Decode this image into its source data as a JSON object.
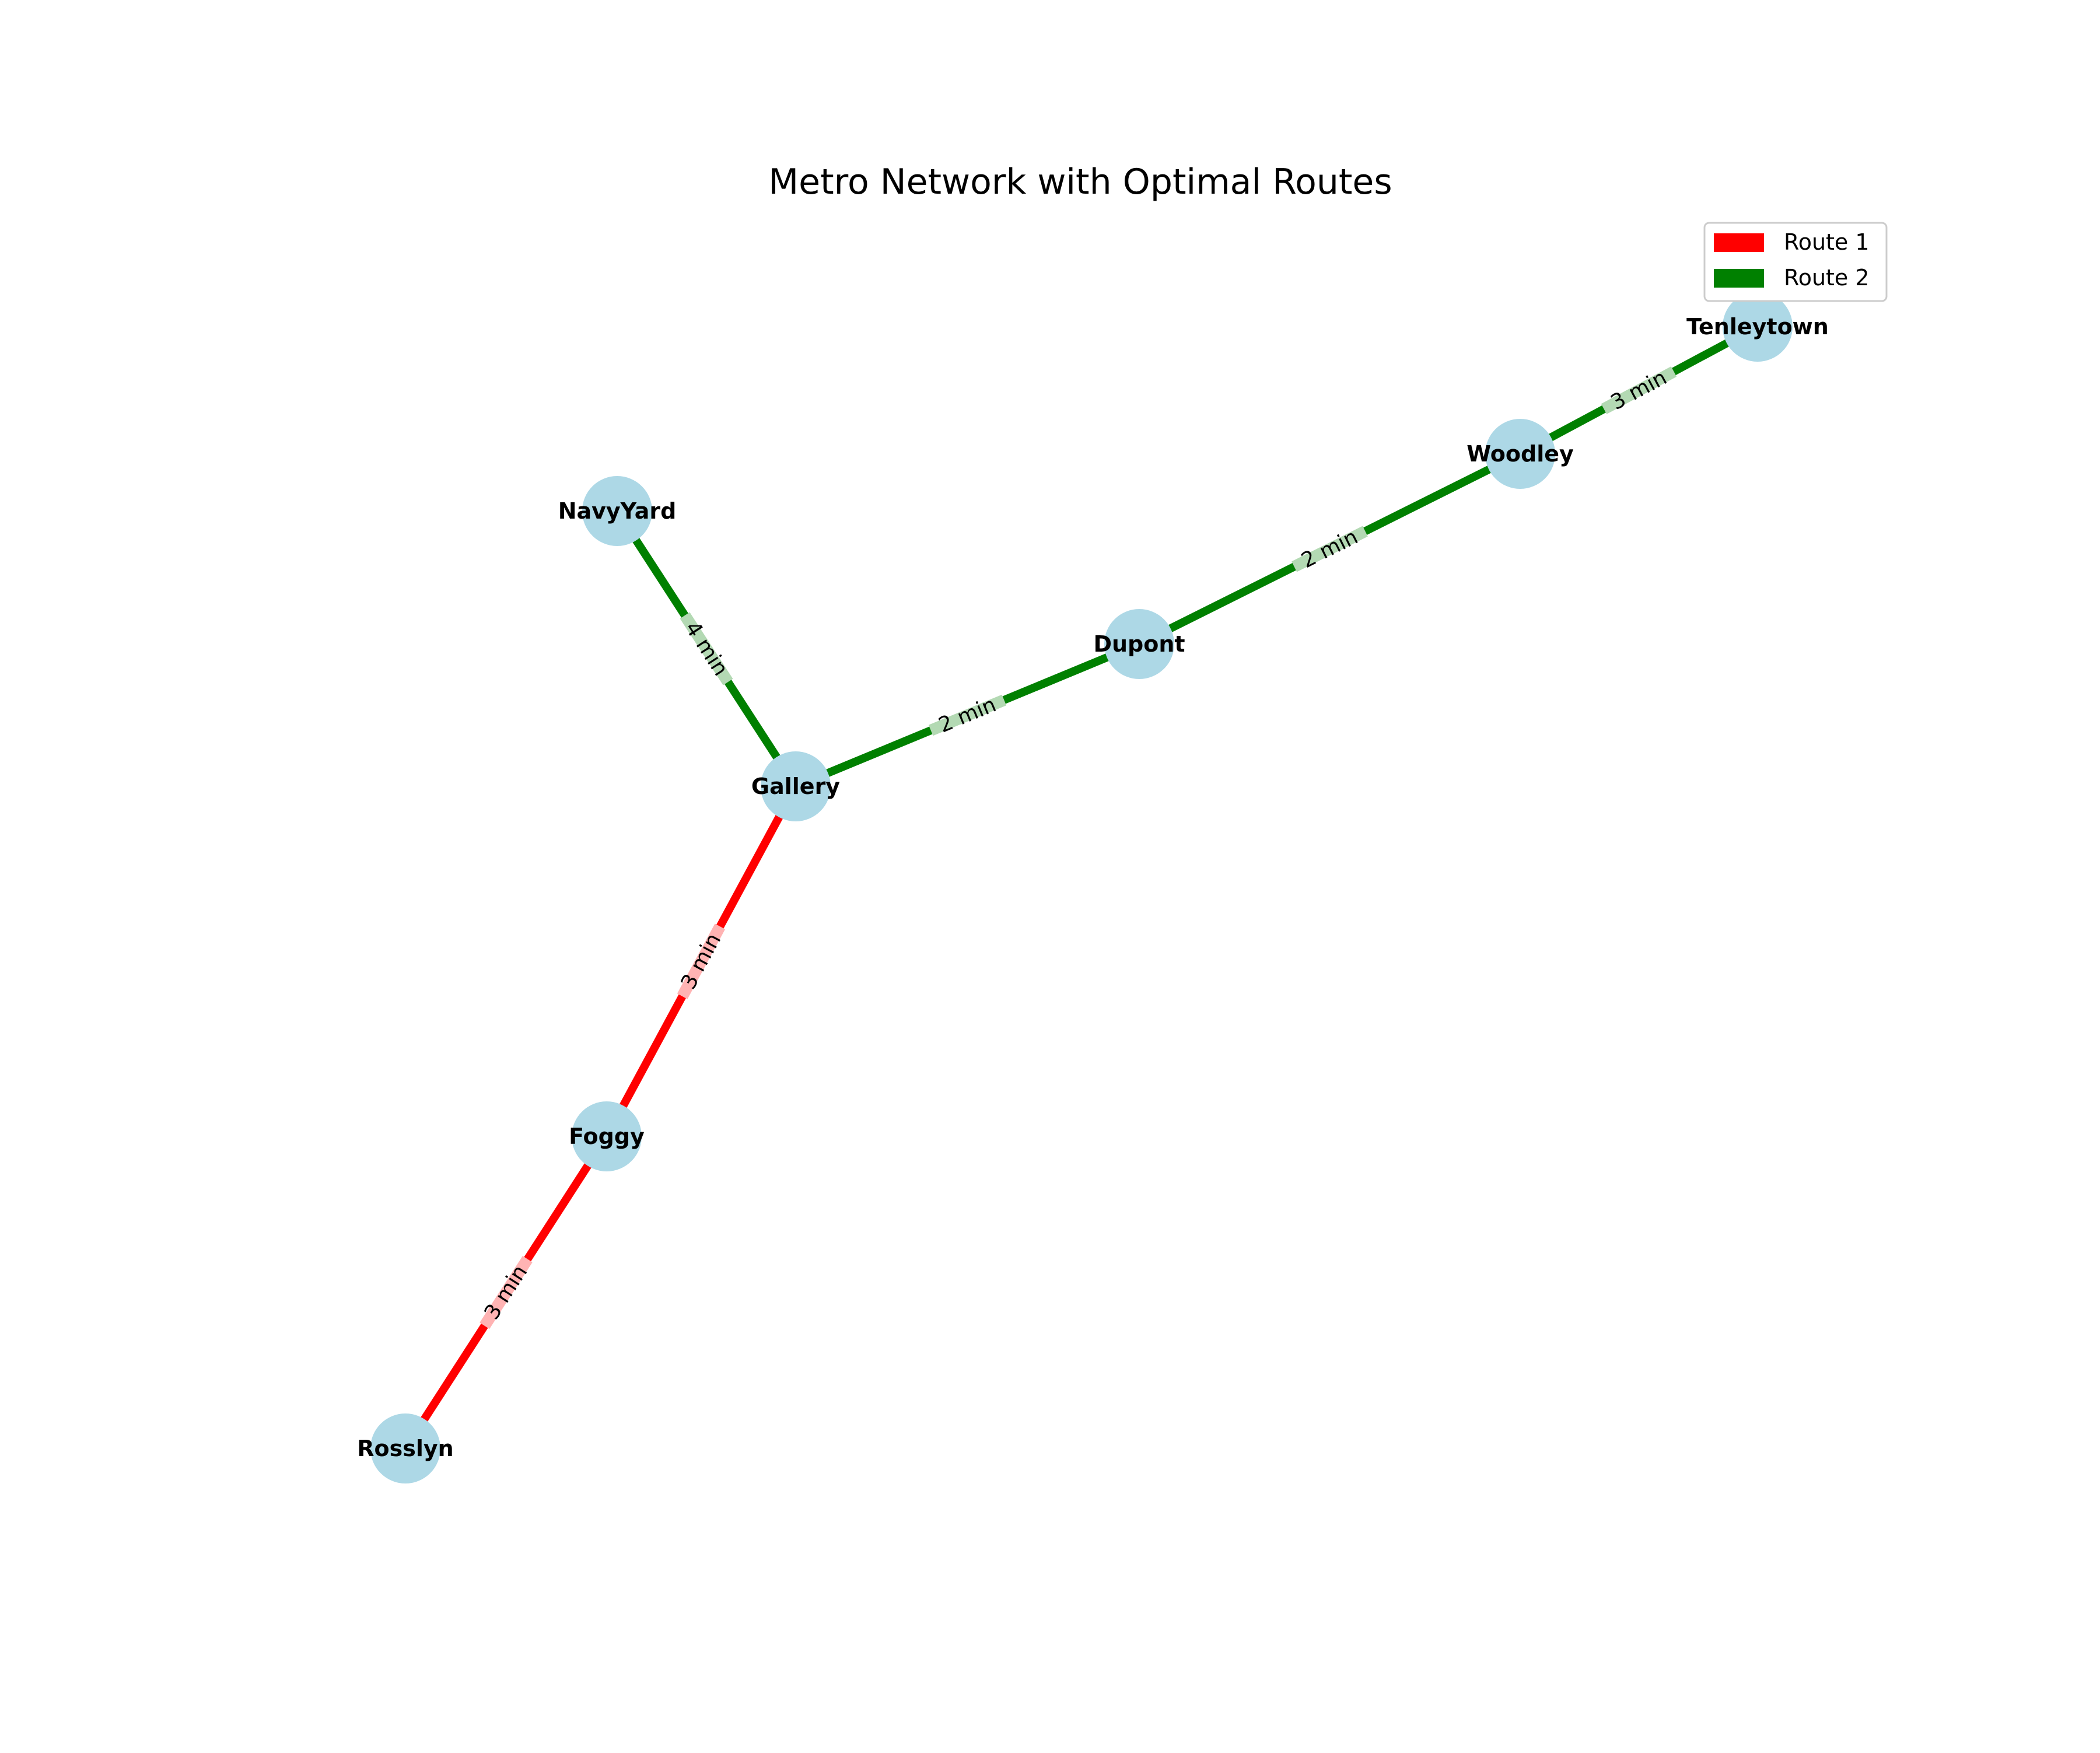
{
  "title": "Metro Network with Optimal Routes",
  "colors": {
    "node_fill": "#add8e6",
    "background": "#ffffff"
  },
  "routes": [
    {
      "name": "Route 1",
      "color": "#ff0000",
      "label_bg": "#ffb3b3"
    },
    {
      "name": "Route 2",
      "color": "#008000",
      "label_bg": "#b3d9b3"
    }
  ],
  "stations": [
    "NavyYard",
    "Gallery",
    "Dupont",
    "Woodley",
    "Tenleytown",
    "Foggy",
    "Rosslyn"
  ],
  "connections": [
    {
      "from": "NavyYard",
      "to": "Gallery",
      "label": "4 min",
      "route": 1
    },
    {
      "from": "Gallery",
      "to": "Dupont",
      "label": "2 min",
      "route": 1
    },
    {
      "from": "Dupont",
      "to": "Woodley",
      "label": "2 min",
      "route": 1
    },
    {
      "from": "Woodley",
      "to": "Tenleytown",
      "label": "3 min",
      "route": 1
    },
    {
      "from": "Gallery",
      "to": "Foggy",
      "label": "3 min",
      "route": 0
    },
    {
      "from": "Foggy",
      "to": "Rosslyn",
      "label": "3 min",
      "route": 0
    }
  ]
}
